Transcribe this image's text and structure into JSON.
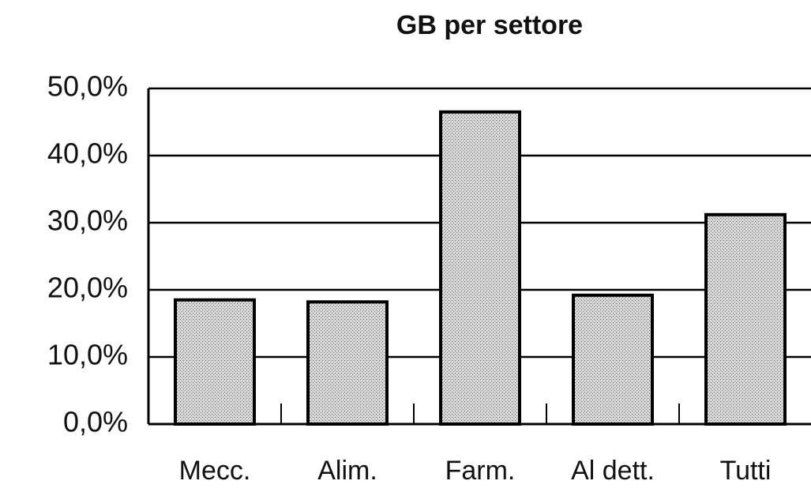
{
  "chart_data": {
    "type": "bar",
    "title": "GB per settore",
    "categories": [
      "Mecc.",
      "Alim.",
      "Farm.",
      "Al dett.",
      "Tutti"
    ],
    "values": [
      18.5,
      18.2,
      46.5,
      19.2,
      31.2
    ],
    "color": "#c4c4c4",
    "ylim": [
      0,
      50
    ],
    "yticks": [
      {
        "value": 0,
        "label": "0,0%"
      },
      {
        "value": 10,
        "label": "10,0%"
      },
      {
        "value": 20,
        "label": "20,0%"
      },
      {
        "value": 30,
        "label": "30,0%"
      },
      {
        "value": 40,
        "label": "40,0%"
      },
      {
        "value": 50,
        "label": "50,0%"
      }
    ],
    "grid": true
  }
}
